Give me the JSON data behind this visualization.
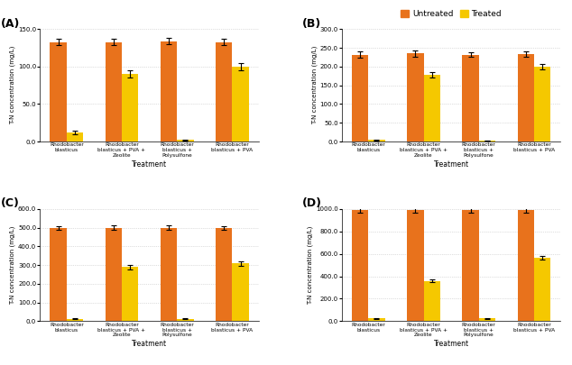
{
  "panels": [
    "A",
    "B",
    "C",
    "D"
  ],
  "categories": [
    "Rhodobacter\nblasticus",
    "Rhodobacter\nblasticus + PVA +\nZeolite",
    "Rhodobacter\nblasticus +\nPolysulfone",
    "Rhodobacter\nblasticus + PVA"
  ],
  "untreated_color": "#E8721C",
  "treated_color": "#F5C800",
  "untreated_values": {
    "A": [
      133,
      133,
      134,
      133
    ],
    "B": [
      232,
      235,
      232,
      234
    ],
    "C": [
      498,
      500,
      499,
      498
    ],
    "D": [
      988,
      990,
      990,
      990
    ]
  },
  "treated_values": {
    "A": [
      12,
      90,
      2,
      100
    ],
    "B": [
      4,
      178,
      3,
      200
    ],
    "C": [
      12,
      290,
      12,
      310
    ],
    "D": [
      25,
      360,
      25,
      565
    ]
  },
  "untreated_errors": {
    "A": [
      4,
      4,
      4,
      4
    ],
    "B": [
      8,
      8,
      6,
      7
    ],
    "C": [
      10,
      10,
      12,
      10
    ],
    "D": [
      25,
      20,
      22,
      22
    ]
  },
  "treated_errors": {
    "A": [
      2,
      5,
      0.5,
      5
    ],
    "B": [
      1,
      8,
      0.5,
      8
    ],
    "C": [
      2,
      12,
      2,
      12
    ],
    "D": [
      3,
      15,
      3,
      20
    ]
  },
  "ylims": {
    "A": [
      0,
      150
    ],
    "B": [
      0,
      300
    ],
    "C": [
      0,
      600
    ],
    "D": [
      0,
      1000
    ]
  },
  "ytick_labels": {
    "A": [
      "0.0",
      "50.0",
      "100.0",
      "150.0"
    ],
    "B": [
      "0.0",
      "50.0",
      "100.0",
      "150.0",
      "200.0",
      "250.0",
      "300.0"
    ],
    "C": [
      "0.0",
      "100.0",
      "200.0",
      "300.0",
      "400.0",
      "500.0",
      "600.0"
    ],
    "D": [
      "0.0",
      "200.0",
      "400.0",
      "600.0",
      "800.0",
      "1000.0"
    ]
  },
  "ytick_vals": {
    "A": [
      0,
      50,
      100,
      150
    ],
    "B": [
      0,
      50,
      100,
      150,
      200,
      250,
      300
    ],
    "C": [
      0,
      100,
      200,
      300,
      400,
      500,
      600
    ],
    "D": [
      0,
      200,
      400,
      600,
      800,
      1000
    ]
  },
  "ylabel": "T-N concentration (mg/L)",
  "xlabel": "Treatment",
  "legend_labels": [
    "Untreated",
    "Treated"
  ],
  "background_color": "#ffffff",
  "bar_width": 0.3
}
